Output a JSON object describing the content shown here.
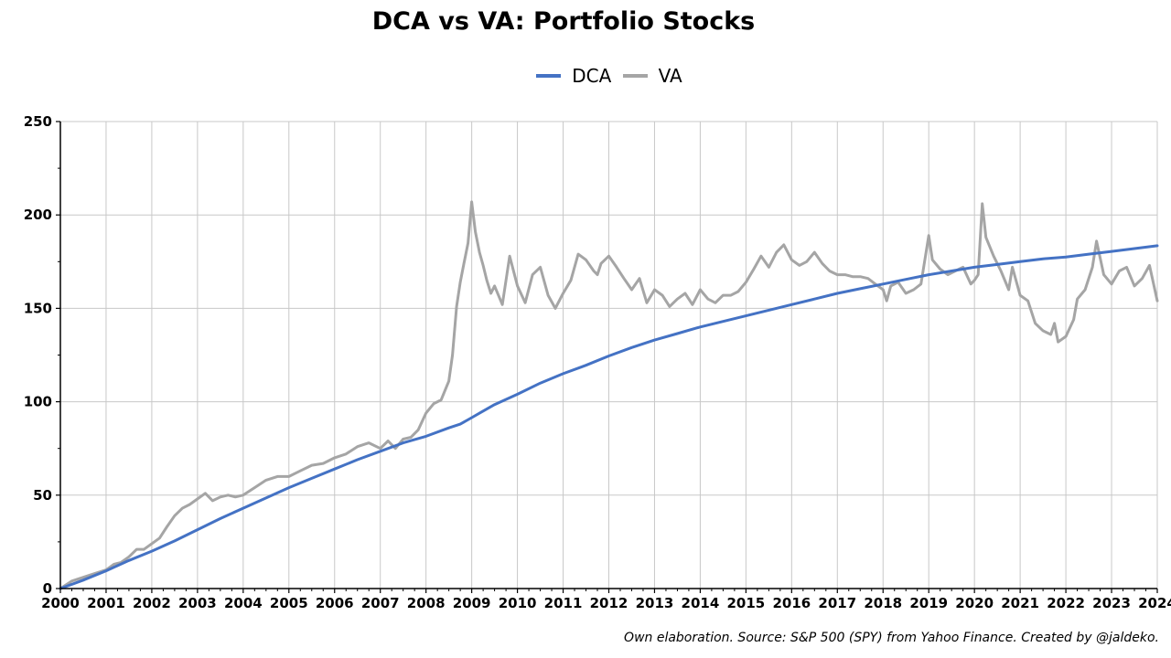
{
  "chart_data": {
    "type": "line",
    "title": "DCA vs VA: Portfolio Stocks",
    "xlabel": "",
    "ylabel": "",
    "x_start_year": 2000,
    "x_ticks": [
      "2000",
      "2001",
      "2002",
      "2003",
      "2004",
      "2005",
      "2006",
      "2007",
      "2008",
      "2009",
      "2010",
      "2011",
      "2012",
      "2013",
      "2014",
      "2015",
      "2016",
      "2017",
      "2018",
      "2019",
      "2020",
      "2021",
      "2022",
      "2023",
      "2024"
    ],
    "y_ticks": [
      "0",
      "50",
      "100",
      "150",
      "200",
      "250"
    ],
    "xlim": [
      2000,
      2024
    ],
    "ylim": [
      0,
      250
    ],
    "grid": true,
    "legend_position": "top-center",
    "series": [
      {
        "name": "DCA",
        "color": "#4472c4",
        "x": [
          2000.0,
          2000.5,
          2001.0,
          2001.5,
          2002.0,
          2002.5,
          2003.0,
          2003.5,
          2004.0,
          2004.5,
          2005.0,
          2005.5,
          2006.0,
          2006.5,
          2007.0,
          2007.5,
          2008.0,
          2008.5,
          2008.75,
          2009.0,
          2009.25,
          2009.5,
          2010.0,
          2010.5,
          2011.0,
          2011.5,
          2012.0,
          2012.5,
          2013.0,
          2013.5,
          2014.0,
          2014.5,
          2015.0,
          2015.5,
          2016.0,
          2016.5,
          2017.0,
          2017.5,
          2018.0,
          2018.5,
          2019.0,
          2019.5,
          2020.0,
          2020.5,
          2021.0,
          2021.5,
          2022.0,
          2022.5,
          2023.0,
          2023.5,
          2024.0
        ],
        "values": [
          0,
          4.5,
          9.5,
          15,
          20,
          25.5,
          31.5,
          37.5,
          43,
          48.5,
          54,
          59,
          64,
          69,
          73.5,
          78,
          81.5,
          86,
          88,
          91.5,
          95,
          98.5,
          104,
          110,
          115,
          119.5,
          124.5,
          129,
          133,
          136.5,
          140,
          143,
          146,
          149,
          152,
          155,
          158,
          160.5,
          163,
          165.5,
          168,
          170,
          172,
          173.5,
          175,
          176.5,
          177.5,
          179,
          180.5,
          182,
          183.5
        ]
      },
      {
        "name": "VA",
        "color": "#a5a5a5",
        "x": [
          2000.0,
          2000.25,
          2000.5,
          2000.75,
          2001.0,
          2001.17,
          2001.33,
          2001.5,
          2001.67,
          2001.83,
          2002.0,
          2002.17,
          2002.33,
          2002.5,
          2002.67,
          2002.83,
          2003.0,
          2003.17,
          2003.33,
          2003.5,
          2003.67,
          2003.83,
          2004.0,
          2004.25,
          2004.5,
          2004.75,
          2005.0,
          2005.25,
          2005.5,
          2005.75,
          2006.0,
          2006.25,
          2006.5,
          2006.75,
          2007.0,
          2007.17,
          2007.33,
          2007.5,
          2007.67,
          2007.83,
          2008.0,
          2008.17,
          2008.33,
          2008.5,
          2008.58,
          2008.67,
          2008.75,
          2008.83,
          2008.92,
          2009.0,
          2009.08,
          2009.17,
          2009.25,
          2009.33,
          2009.42,
          2009.5,
          2009.67,
          2009.83,
          2010.0,
          2010.17,
          2010.33,
          2010.5,
          2010.67,
          2010.83,
          2011.0,
          2011.17,
          2011.33,
          2011.5,
          2011.67,
          2011.75,
          2011.83,
          2012.0,
          2012.17,
          2012.33,
          2012.5,
          2012.67,
          2012.83,
          2013.0,
          2013.17,
          2013.33,
          2013.5,
          2013.67,
          2013.83,
          2014.0,
          2014.17,
          2014.33,
          2014.5,
          2014.67,
          2014.83,
          2015.0,
          2015.17,
          2015.33,
          2015.5,
          2015.67,
          2015.83,
          2016.0,
          2016.17,
          2016.33,
          2016.5,
          2016.67,
          2016.83,
          2017.0,
          2017.17,
          2017.33,
          2017.5,
          2017.67,
          2017.83,
          2018.0,
          2018.08,
          2018.17,
          2018.33,
          2018.5,
          2018.67,
          2018.83,
          2019.0,
          2019.08,
          2019.25,
          2019.42,
          2019.58,
          2019.75,
          2019.92,
          2020.0,
          2020.08,
          2020.17,
          2020.25,
          2020.42,
          2020.58,
          2020.75,
          2020.83,
          2021.0,
          2021.17,
          2021.33,
          2021.5,
          2021.67,
          2021.75,
          2021.83,
          2022.0,
          2022.17,
          2022.25,
          2022.42,
          2022.58,
          2022.67,
          2022.83,
          2023.0,
          2023.17,
          2023.33,
          2023.5,
          2023.67,
          2023.83,
          2024.0
        ],
        "values": [
          0,
          4,
          6,
          8,
          10,
          13,
          14,
          17,
          21,
          21,
          24,
          27,
          33,
          39,
          43,
          45,
          48,
          51,
          47,
          49,
          50,
          49,
          50,
          54,
          58,
          60,
          60,
          63,
          66,
          67,
          70,
          72,
          76,
          78,
          75,
          79,
          75,
          80,
          81,
          85,
          94,
          99,
          101,
          111,
          125,
          151,
          164,
          174,
          185,
          207,
          191,
          180,
          173,
          165,
          158,
          162,
          152,
          178,
          162,
          153,
          168,
          172,
          157,
          150,
          158,
          165,
          179,
          176,
          170,
          168,
          174,
          178,
          172,
          166,
          160,
          166,
          153,
          160,
          157,
          151,
          155,
          158,
          152,
          160,
          155,
          153,
          157,
          157,
          159,
          164,
          171,
          178,
          172,
          180,
          184,
          176,
          173,
          175,
          180,
          174,
          170,
          168,
          168,
          167,
          167,
          166,
          163,
          160,
          154,
          162,
          164,
          158,
          160,
          163,
          189,
          176,
          171,
          168,
          170,
          172,
          163,
          165,
          168,
          206,
          188,
          178,
          170,
          160,
          172,
          157,
          154,
          142,
          138,
          136,
          142,
          132,
          135,
          144,
          155,
          160,
          172,
          186,
          168,
          163,
          170,
          172,
          162,
          166,
          173,
          154
        ]
      }
    ],
    "annotation": "Own elaboration. Source: S&P 500 (SPY) from Yahoo Finance. Created by @jaldeko."
  }
}
